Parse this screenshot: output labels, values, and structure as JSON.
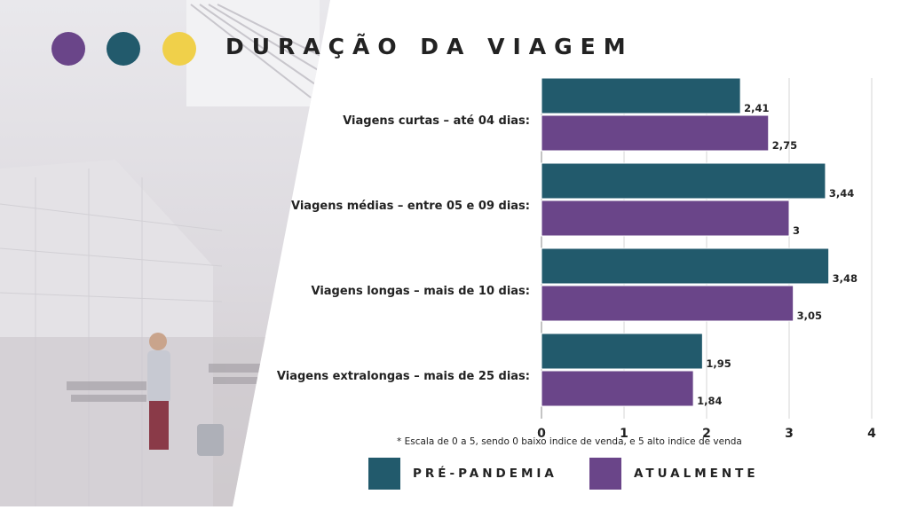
{
  "header": {
    "title": "DURAÇÃO DA VIAGEM",
    "dots": [
      "#6a4589",
      "#225a6c",
      "#f0d04a"
    ]
  },
  "colors": {
    "series_0": "#225a6c",
    "series_1": "#6a4589"
  },
  "footnote": "* Escala de 0 a 5, sendo 0 baixo indice de venda, e 5 alto indice de venda",
  "legend": {
    "items": [
      {
        "label": "PRÉ-PANDEMIA"
      },
      {
        "label": "ATUALMENTE"
      }
    ]
  },
  "chart_data": {
    "type": "bar",
    "orientation": "horizontal",
    "categories": [
      "Viagens curtas – até 04 dias:",
      "Viagens médias – entre 05 e 09 dias:",
      "Viagens longas – mais de 10 dias:",
      "Viagens extralongas – mais de 25 dias:"
    ],
    "series": [
      {
        "values": [
          2.41,
          3.44,
          3.48,
          1.95
        ],
        "labels": [
          "2,41",
          "3,44",
          "3,48",
          "1,95"
        ]
      },
      {
        "values": [
          2.75,
          3,
          3.05,
          1.84
        ],
        "labels": [
          "2,75",
          "3",
          "3,05",
          "1,84"
        ]
      }
    ],
    "xlim": [
      0,
      4
    ],
    "xticks": [
      "0",
      "1",
      "2",
      "3",
      "4"
    ],
    "grid": true,
    "legend_position": "bottom"
  }
}
